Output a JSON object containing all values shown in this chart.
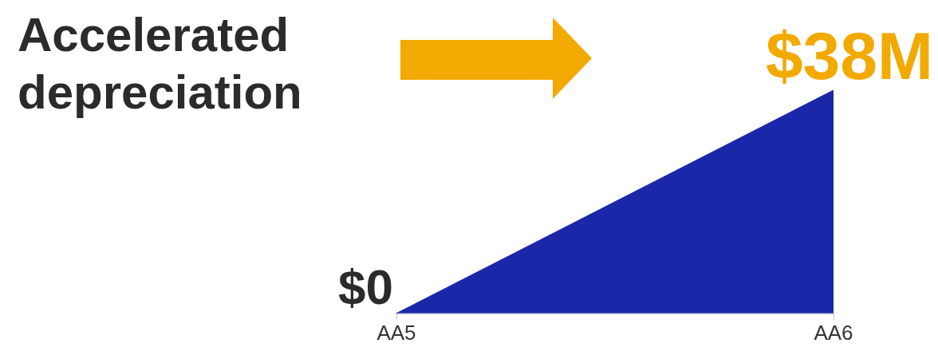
{
  "chart_data": {
    "type": "area",
    "title": "Accelerated depreciation",
    "categories": [
      "AA5",
      "AA6"
    ],
    "series": [
      {
        "color": "#1a27a8",
        "values": [
          0,
          38
        ],
        "value_labels": [
          "$0",
          "$38M"
        ]
      }
    ]
  }
}
